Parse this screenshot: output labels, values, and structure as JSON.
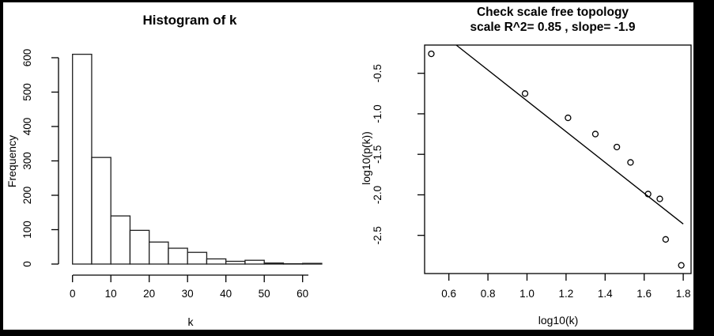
{
  "figure": {
    "background": "#000000",
    "panel_background": "#ffffff",
    "ink_color": "#000000"
  },
  "chart_data": [
    {
      "type": "bar",
      "subtype": "histogram",
      "title": "Histogram of k",
      "xlabel": "k",
      "ylabel": "Frequency",
      "bin_width": 5,
      "bin_edges": [
        0,
        5,
        10,
        15,
        20,
        25,
        30,
        35,
        40,
        45,
        50,
        55,
        60,
        65
      ],
      "values": [
        610,
        310,
        140,
        98,
        64,
        46,
        34,
        15,
        8,
        11,
        3,
        1,
        2
      ],
      "x_ticks": [
        0,
        10,
        20,
        30,
        40,
        50,
        60
      ],
      "y_ticks": [
        0,
        100,
        200,
        300,
        400,
        500,
        600
      ],
      "xlim": [
        0,
        65
      ],
      "ylim": [
        0,
        613
      ],
      "grid": false,
      "bar_fill": "#ffffff"
    },
    {
      "type": "scatter",
      "title": "Check scale free topology",
      "subtitle": "scale R^2= 0.85 , slope= -1.9",
      "xlabel": "log10(k)",
      "ylabel": "log10(p(k))",
      "r_squared": 0.85,
      "slope": -1.9,
      "points": [
        {
          "x": 0.51,
          "y": -0.26
        },
        {
          "x": 0.99,
          "y": -0.75
        },
        {
          "x": 1.21,
          "y": -1.05
        },
        {
          "x": 1.35,
          "y": -1.25
        },
        {
          "x": 1.46,
          "y": -1.41
        },
        {
          "x": 1.53,
          "y": -1.6
        },
        {
          "x": 1.62,
          "y": -1.99
        },
        {
          "x": 1.68,
          "y": -2.05
        },
        {
          "x": 1.71,
          "y": -2.55
        },
        {
          "x": 1.79,
          "y": -2.87
        }
      ],
      "fit_line": {
        "slope": -1.9,
        "intercept": 1.06,
        "x_end": 1.8
      },
      "x_ticks": [
        0.6,
        0.8,
        1.0,
        1.2,
        1.4,
        1.6,
        1.8
      ],
      "y_ticks": [
        -0.5,
        -1.0,
        -1.5,
        -2.0,
        -2.5
      ],
      "xlim": [
        0.47,
        1.85
      ],
      "ylim": [
        -2.97,
        -0.15
      ],
      "grid": false,
      "legend": null
    }
  ]
}
